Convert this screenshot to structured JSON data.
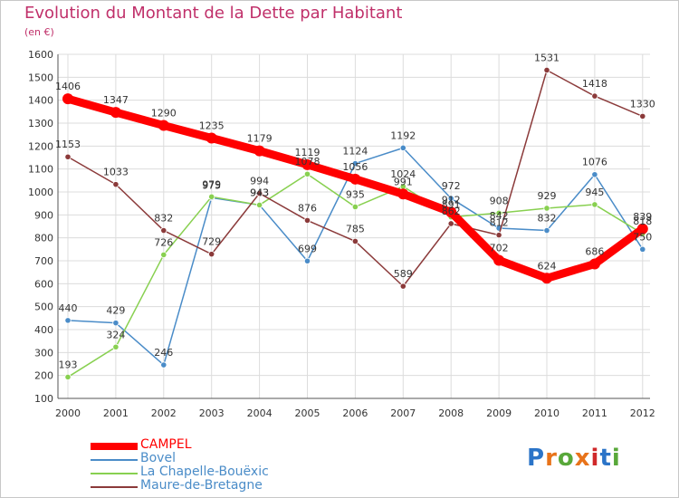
{
  "header": {
    "title": "Evolution du Montant de la Dette par Habitant",
    "unit": "(en €)"
  },
  "logo": {
    "text": "Proxiti",
    "letter_colors": [
      "#2b74c8",
      "#e8731a",
      "#58a83a",
      "#e8731a",
      "#d0282a",
      "#2b74c8",
      "#58a83a"
    ]
  },
  "chart_data": {
    "type": "line",
    "title": "Evolution du Montant de la Dette par Habitant",
    "ylabel": "(en €)",
    "ylim": [
      100,
      1600
    ],
    "yticks": [
      100,
      200,
      300,
      400,
      500,
      600,
      700,
      800,
      900,
      1000,
      1100,
      1200,
      1300,
      1400,
      1500,
      1600
    ],
    "x": [
      "2000",
      "2001",
      "2002",
      "2003",
      "2004",
      "2005",
      "2006",
      "2007",
      "2008",
      "2009",
      "2010",
      "2011",
      "2012"
    ],
    "grid": true,
    "legend_position": "bottom-left",
    "series": [
      {
        "name": "CAMPEL",
        "color": "#ff0000",
        "values": [
          1406,
          1347,
          1290,
          1235,
          1179,
          1119,
          1056,
          991,
          912,
          702,
          624,
          686,
          839
        ]
      },
      {
        "name": "Bovel",
        "color": "#4a8cc8",
        "values": [
          440,
          429,
          246,
          975,
          943,
          699,
          1124,
          1192,
          972,
          842,
          832,
          1076,
          750
        ]
      },
      {
        "name": "La Chapelle-Bouëxic",
        "color": "#88d050",
        "values": [
          193,
          324,
          726,
          979,
          943,
          1078,
          935,
          1024,
          891,
          908,
          929,
          945,
          818
        ]
      },
      {
        "name": "Maure-de-Bretagne",
        "color": "#8b3a3a",
        "values": [
          1153,
          1033,
          832,
          729,
          994,
          876,
          785,
          589,
          862,
          812,
          1531,
          1418,
          1330
        ]
      }
    ]
  }
}
